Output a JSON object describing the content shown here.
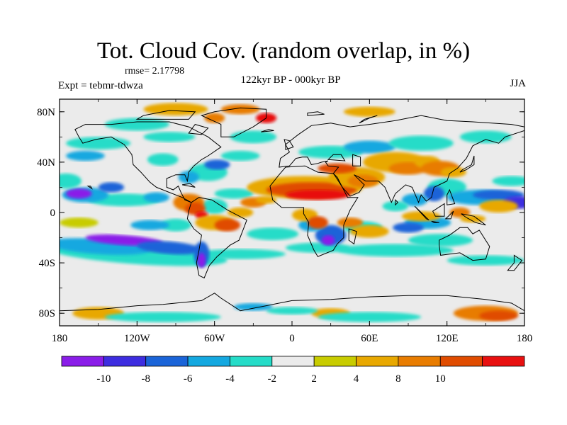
{
  "title": "Tot. Cloud Cov. (random overlap, in %)",
  "rmse_text": "rmse= 2.17798",
  "expt_text": "Expt = tebmr-tdwza",
  "period_text": "122kyr BP - 000kyr BP",
  "season_text": "JJA",
  "map": {
    "lon_range": [
      -180,
      180
    ],
    "lat_range": [
      -90,
      90
    ],
    "lon_ticks": [
      {
        "value": -180,
        "label": "180"
      },
      {
        "value": -120,
        "label": "120W"
      },
      {
        "value": -60,
        "label": "60W"
      },
      {
        "value": 0,
        "label": "0"
      },
      {
        "value": 60,
        "label": "60E"
      },
      {
        "value": 120,
        "label": "120E"
      },
      {
        "value": 180,
        "label": "180"
      }
    ],
    "lat_ticks": [
      {
        "value": 80,
        "label": "80N"
      },
      {
        "value": 40,
        "label": "40N"
      },
      {
        "value": 0,
        "label": "0"
      },
      {
        "value": -40,
        "label": "40S"
      },
      {
        "value": -80,
        "label": "80S"
      }
    ],
    "background_color": "#ebebeb"
  },
  "colorbar": {
    "colors": [
      "#8a1de8",
      "#3d2de0",
      "#1a64d8",
      "#14a8e0",
      "#25dcc8",
      "#ebebeb",
      "#c8cc00",
      "#e8a800",
      "#e87c00",
      "#e04c00",
      "#e81010"
    ],
    "labels": [
      "-10",
      "-8",
      "-6",
      "-4",
      "-2",
      "2",
      "4",
      "8",
      "10"
    ]
  }
}
